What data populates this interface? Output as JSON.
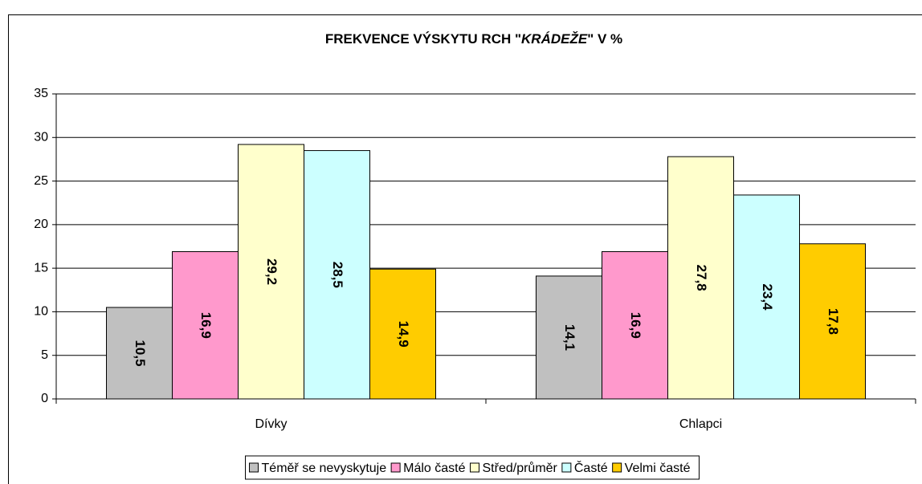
{
  "chart_data": {
    "type": "bar",
    "title": "FREKVENCE VÝSKYTU RCH \"KRÁDEŽE\" V %",
    "categories": [
      "Dívky",
      "Chlapci"
    ],
    "series": [
      {
        "name": "Téměř se nevyskytuje",
        "color": "#c0c0c0",
        "values": [
          10.5,
          14.1
        ],
        "value_labels": [
          "10,5",
          "14,1"
        ]
      },
      {
        "name": "Málo časté",
        "color": "#ff99cc",
        "values": [
          16.9,
          16.9
        ],
        "value_labels": [
          "16,9",
          "16,9"
        ]
      },
      {
        "name": "Střed/průměr",
        "color": "#ffffcc",
        "values": [
          29.2,
          27.8
        ],
        "value_labels": [
          "29,2",
          "27,8"
        ]
      },
      {
        "name": "Časté",
        "color": "#ccffff",
        "values": [
          28.5,
          23.4
        ],
        "value_labels": [
          "28,5",
          "23,4"
        ]
      },
      {
        "name": "Velmi časté",
        "color": "#ffcc00",
        "values": [
          14.9,
          17.8
        ],
        "value_labels": [
          "14,9",
          "17,8"
        ]
      }
    ],
    "ylim": [
      0,
      35
    ],
    "yticks": [
      0,
      5,
      10,
      15,
      20,
      25,
      30,
      35
    ],
    "grid": true,
    "legend": "bottom"
  }
}
